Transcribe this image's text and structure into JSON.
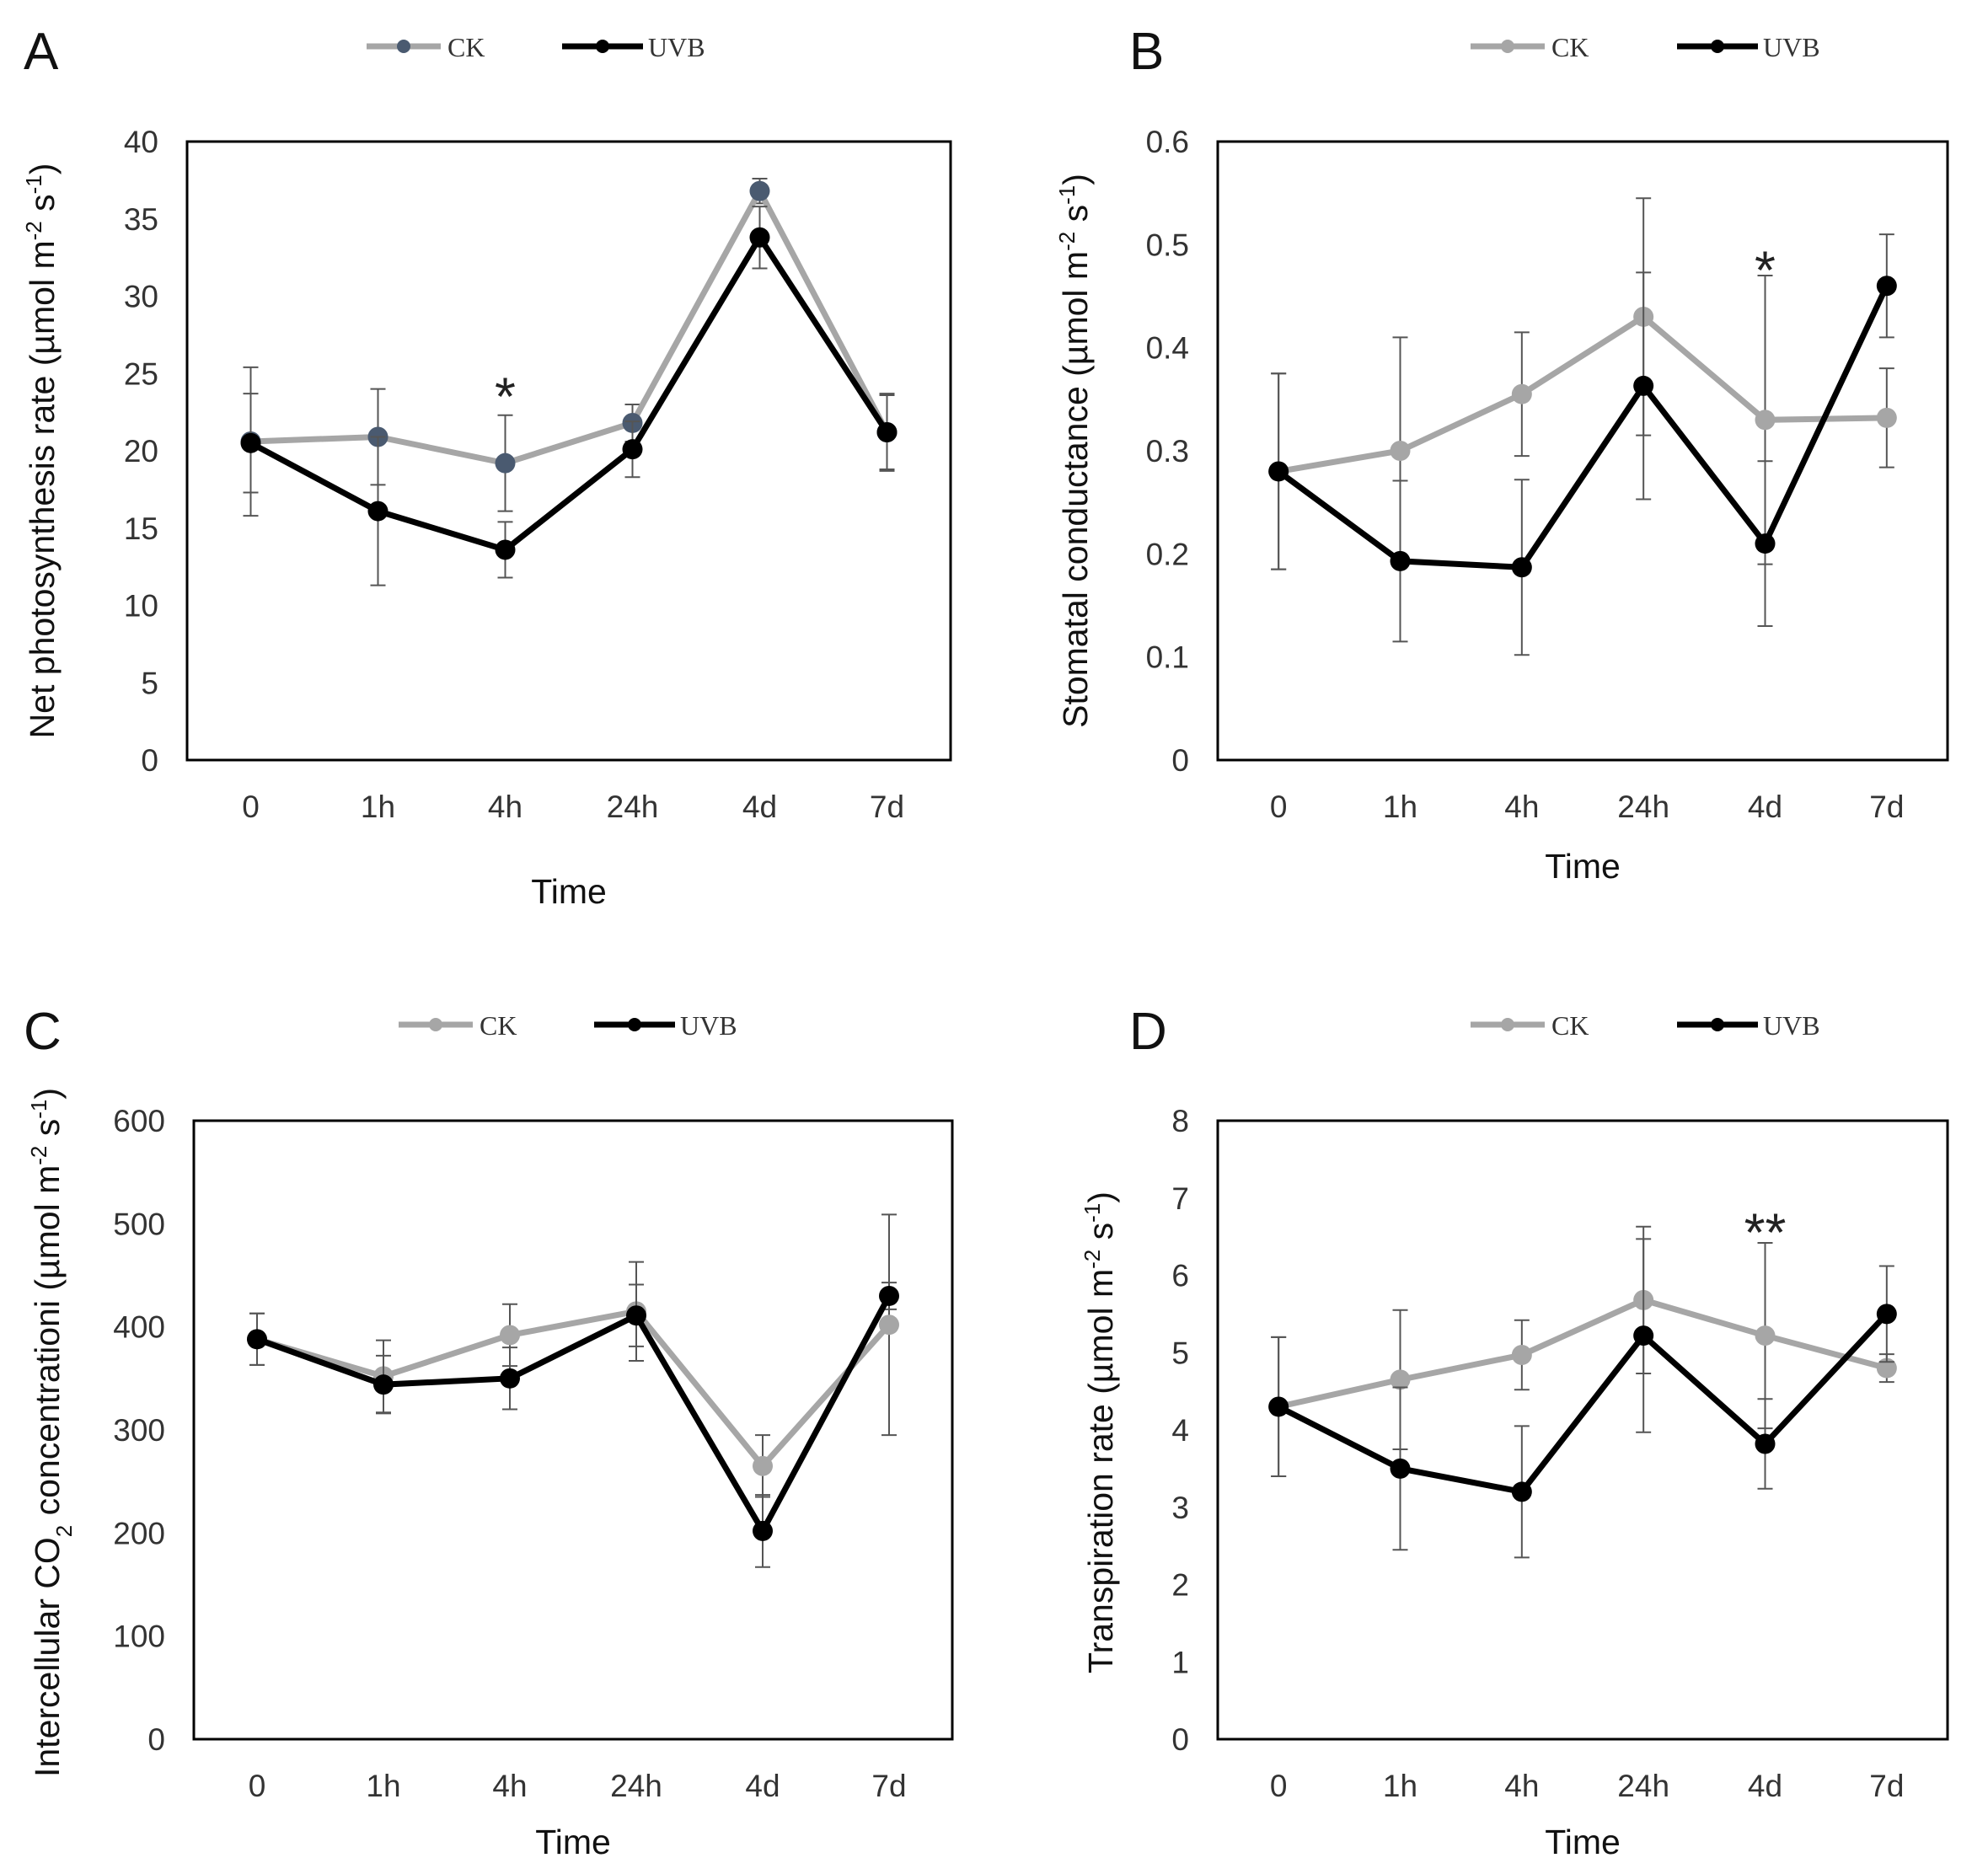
{
  "colors": {
    "ck": "#a6a6a6",
    "ck_marker_A": "#4a5a70",
    "uvb": "#000000",
    "error": "#555555",
    "frame": "#000000"
  },
  "chart_data": [
    {
      "id": "A",
      "letter": "A",
      "type": "line",
      "categories": [
        "0",
        "1h",
        "4h",
        "24h",
        "4d",
        "7d"
      ],
      "xlabel": "Time",
      "ylabel_main": "Net photosynthesis rate (µmol m",
      "ylabel_sup1": "-2",
      "ylabel_mid": " s",
      "ylabel_sup2": "-1",
      "ylabel_end": ")",
      "ylim": [
        0,
        40
      ],
      "yticks": [
        "0",
        "5",
        "10",
        "15",
        "20",
        "25",
        "30",
        "35",
        "40"
      ],
      "series": [
        {
          "name": "CK",
          "values": [
            20.6,
            20.9,
            19.2,
            21.8,
            36.8,
            21.2
          ],
          "errors": [
            4.8,
            3.1,
            3.1,
            1.2,
            0.8,
            2.4
          ]
        },
        {
          "name": "UVB",
          "values": [
            20.5,
            16.1,
            13.6,
            20.1,
            33.8,
            21.2
          ],
          "errors": [
            3.2,
            4.8,
            1.8,
            1.8,
            2.0,
            2.5
          ]
        }
      ],
      "annotations": [
        {
          "text": "*",
          "x": "4h",
          "y": 24.5
        }
      ]
    },
    {
      "id": "B",
      "letter": "B",
      "type": "line",
      "categories": [
        "0",
        "1h",
        "4h",
        "24h",
        "4d",
        "7d"
      ],
      "xlabel": "Time",
      "ylabel_main": "Stomatal conductance (µmol m",
      "ylabel_sup1": "-2",
      "ylabel_mid": " s",
      "ylabel_sup2": "-1",
      "ylabel_end": ")",
      "ylim": [
        0,
        0.6
      ],
      "yticks": [
        "0",
        "0.1",
        "0.2",
        "0.3",
        "0.4",
        "0.5",
        "0.6"
      ],
      "series": [
        {
          "name": "CK",
          "values": [
            0.28,
            0.3,
            0.355,
            0.43,
            0.33,
            0.332
          ],
          "errors": [
            0.095,
            0.11,
            0.06,
            0.115,
            0.14,
            0.048
          ]
        },
        {
          "name": "UVB",
          "values": [
            0.28,
            0.193,
            0.187,
            0.363,
            0.21,
            0.46
          ],
          "errors": [
            0.095,
            0.078,
            0.085,
            0.11,
            0.08,
            0.05
          ]
        }
      ],
      "annotations": [
        {
          "text": "*",
          "x": "4d",
          "y": 0.49
        }
      ]
    },
    {
      "id": "C",
      "letter": "C",
      "type": "line",
      "categories": [
        "0",
        "1h",
        "4h",
        "24h",
        "4d",
        "7d"
      ],
      "xlabel": "Time",
      "ylabel_main": "Intercellular CO",
      "ylabel_sub": "2",
      "ylabel_after_sub": " concentrationi (µmol m",
      "ylabel_sup1": "-2",
      "ylabel_mid": " s",
      "ylabel_sup2": "-1",
      "ylabel_end": ")",
      "ylim": [
        0,
        600
      ],
      "yticks": [
        "0",
        "100",
        "200",
        "300",
        "400",
        "500",
        "600"
      ],
      "series": [
        {
          "name": "CK",
          "values": [
            388,
            352,
            392,
            415,
            265,
            402
          ],
          "errors": [
            25,
            35,
            30,
            48,
            30,
            107
          ]
        },
        {
          "name": "UVB",
          "values": [
            388,
            344,
            350,
            411,
            202,
            430
          ],
          "errors": [
            25,
            28,
            30,
            30,
            35,
            13
          ]
        }
      ],
      "annotations": []
    },
    {
      "id": "D",
      "letter": "D",
      "type": "line",
      "categories": [
        "0",
        "1h",
        "4h",
        "24h",
        "4d",
        "7d"
      ],
      "xlabel": "Time",
      "ylabel_main": "Transpiration rate (µmol m",
      "ylabel_sup1": "-2",
      "ylabel_mid": " s",
      "ylabel_sup2": "-1",
      "ylabel_end": ")",
      "ylim": [
        0,
        8
      ],
      "yticks": [
        "0",
        "1",
        "2",
        "3",
        "4",
        "5",
        "6",
        "7",
        "8"
      ],
      "series": [
        {
          "name": "CK",
          "values": [
            4.3,
            4.65,
            4.97,
            5.68,
            5.22,
            4.8
          ],
          "errors": [
            0.9,
            0.9,
            0.45,
            0.95,
            1.2,
            0.18
          ]
        },
        {
          "name": "UVB",
          "values": [
            4.3,
            3.5,
            3.2,
            5.22,
            3.82,
            5.5
          ],
          "errors": [
            0.9,
            1.05,
            0.85,
            1.25,
            0.58,
            0.62
          ]
        }
      ],
      "annotations": [
        {
          "text": "**",
          "x": "4d",
          "y": 6.75
        }
      ]
    }
  ]
}
